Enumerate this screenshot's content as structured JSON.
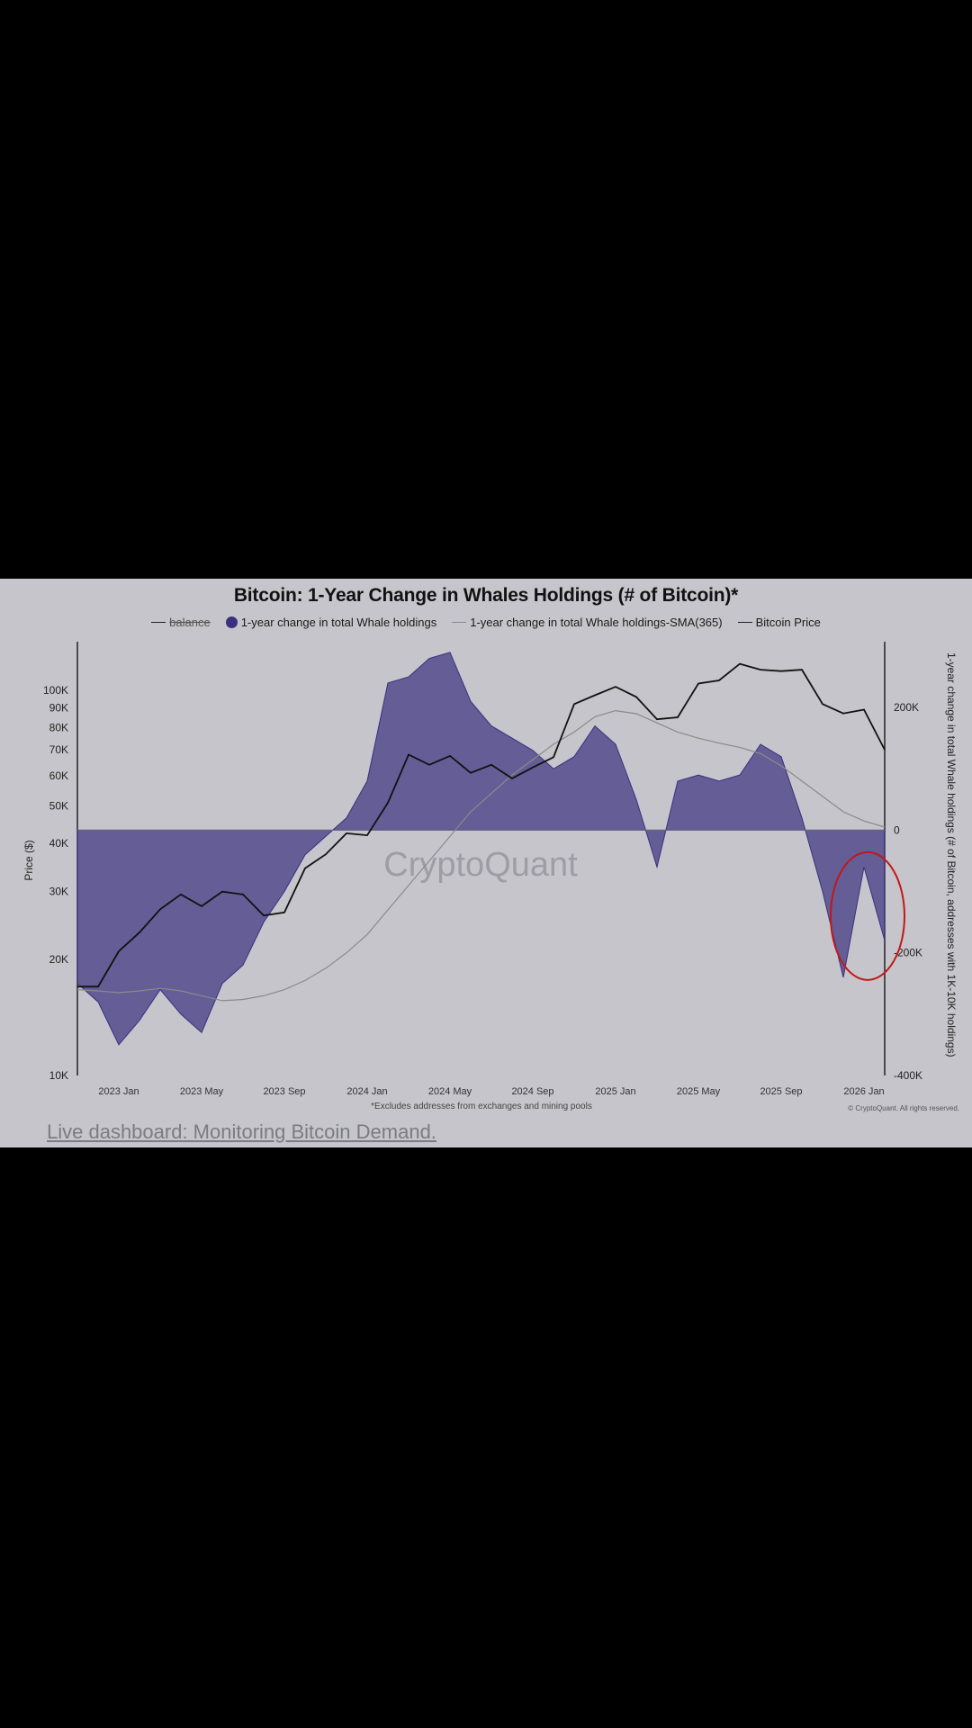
{
  "chart_data": {
    "type": "area",
    "title": "Bitcoin: 1-Year Change in Whales Holdings (# of Bitcoin)*",
    "footnote": "*Excludes addresses from exchanges and mining pools",
    "copyright": "© CryptoQuant. All rights reserved.",
    "watermark": "CryptoQuant",
    "legend": [
      {
        "label": "balance",
        "style": "line-strikethrough",
        "color": "#333333"
      },
      {
        "label": "1-year change in total Whale holdings",
        "style": "dot",
        "color": "#3b307f"
      },
      {
        "label": "1-year change in total Whale holdings-SMA(365)",
        "style": "line",
        "color": "#8a8a8a"
      },
      {
        "label": "Bitcoin Price",
        "style": "line",
        "color": "#111111"
      }
    ],
    "legend_position": "top-center",
    "xlabel": "",
    "x_ticks": [
      "2023 Jan",
      "2023 May",
      "2023 Sep",
      "2024 Jan",
      "2024 May",
      "2024 Sep",
      "2025 Jan",
      "2025 May",
      "2025 Sep",
      "2026 Jan"
    ],
    "x": [
      "2022-11",
      "2022-12",
      "2023-01",
      "2023-02",
      "2023-03",
      "2023-04",
      "2023-05",
      "2023-06",
      "2023-07",
      "2023-08",
      "2023-09",
      "2023-10",
      "2023-11",
      "2023-12",
      "2024-01",
      "2024-02",
      "2024-03",
      "2024-04",
      "2024-05",
      "2024-06",
      "2024-07",
      "2024-08",
      "2024-09",
      "2024-10",
      "2024-11",
      "2024-12",
      "2025-01",
      "2025-02",
      "2025-03",
      "2025-04",
      "2025-05",
      "2025-06",
      "2025-07",
      "2025-08",
      "2025-09",
      "2025-10",
      "2025-11",
      "2025-12",
      "2026-01",
      "2026-02"
    ],
    "y_left": {
      "label": "Price ($)",
      "scale": "log",
      "ticks": [
        "10K",
        "20K",
        "30K",
        "40K",
        "50K",
        "60K",
        "70K",
        "80K",
        "90K",
        "100K"
      ],
      "range": [
        10000,
        130000
      ]
    },
    "y_right": {
      "label": "1-year change in total Whale holdings (# of Bitcoin, addresses with 1K-10K holdings)",
      "ticks": [
        "200K",
        "0",
        "-200K",
        "-400K"
      ],
      "range": [
        -400000,
        300000
      ]
    },
    "series": [
      {
        "name": "1-year change in total Whale holdings",
        "axis": "right",
        "color": "#3b307f",
        "values": [
          -250000,
          -280000,
          -350000,
          -310000,
          -260000,
          -300000,
          -330000,
          -250000,
          -220000,
          -150000,
          -100000,
          -40000,
          -10000,
          20000,
          80000,
          240000,
          250000,
          280000,
          290000,
          210000,
          170000,
          150000,
          130000,
          100000,
          120000,
          170000,
          140000,
          50000,
          -60000,
          80000,
          90000,
          80000,
          90000,
          140000,
          120000,
          20000,
          -100000,
          -240000,
          -60000,
          -180000
        ]
      },
      {
        "name": "1-year change in total Whale holdings-SMA(365)",
        "axis": "right",
        "color": "#8a8a8a",
        "values": [
          -260000,
          -262000,
          -265000,
          -262000,
          -258000,
          -262000,
          -270000,
          -278000,
          -276000,
          -270000,
          -260000,
          -245000,
          -225000,
          -200000,
          -170000,
          -130000,
          -90000,
          -50000,
          -10000,
          30000,
          60000,
          90000,
          115000,
          140000,
          160000,
          185000,
          195000,
          190000,
          175000,
          160000,
          150000,
          142000,
          135000,
          125000,
          105000,
          80000,
          55000,
          30000,
          15000,
          5000
        ]
      },
      {
        "name": "Bitcoin Price",
        "axis": "left",
        "color": "#111111",
        "values": [
          17000,
          17000,
          21000,
          23500,
          27000,
          29500,
          27500,
          30000,
          29500,
          26000,
          26500,
          34500,
          37500,
          42500,
          42000,
          51000,
          68000,
          64000,
          67500,
          61000,
          64000,
          59000,
          63000,
          67000,
          92000,
          97000,
          102000,
          96000,
          84000,
          85000,
          104000,
          106000,
          117000,
          113000,
          112000,
          113000,
          92000,
          87000,
          89000,
          70000
        ]
      }
    ],
    "annotation": {
      "type": "circle",
      "color": "#c21818",
      "note": "recent negative 1-year change highlighted"
    }
  },
  "link": {
    "text": "Live dashboard: Monitoring Bitcoin Demand."
  },
  "colors": {
    "background": "#c6c5cb",
    "whale_fill": "#3b307f",
    "price_line": "#111111",
    "sma_line": "#8a8a8a",
    "circle": "#c21818"
  }
}
